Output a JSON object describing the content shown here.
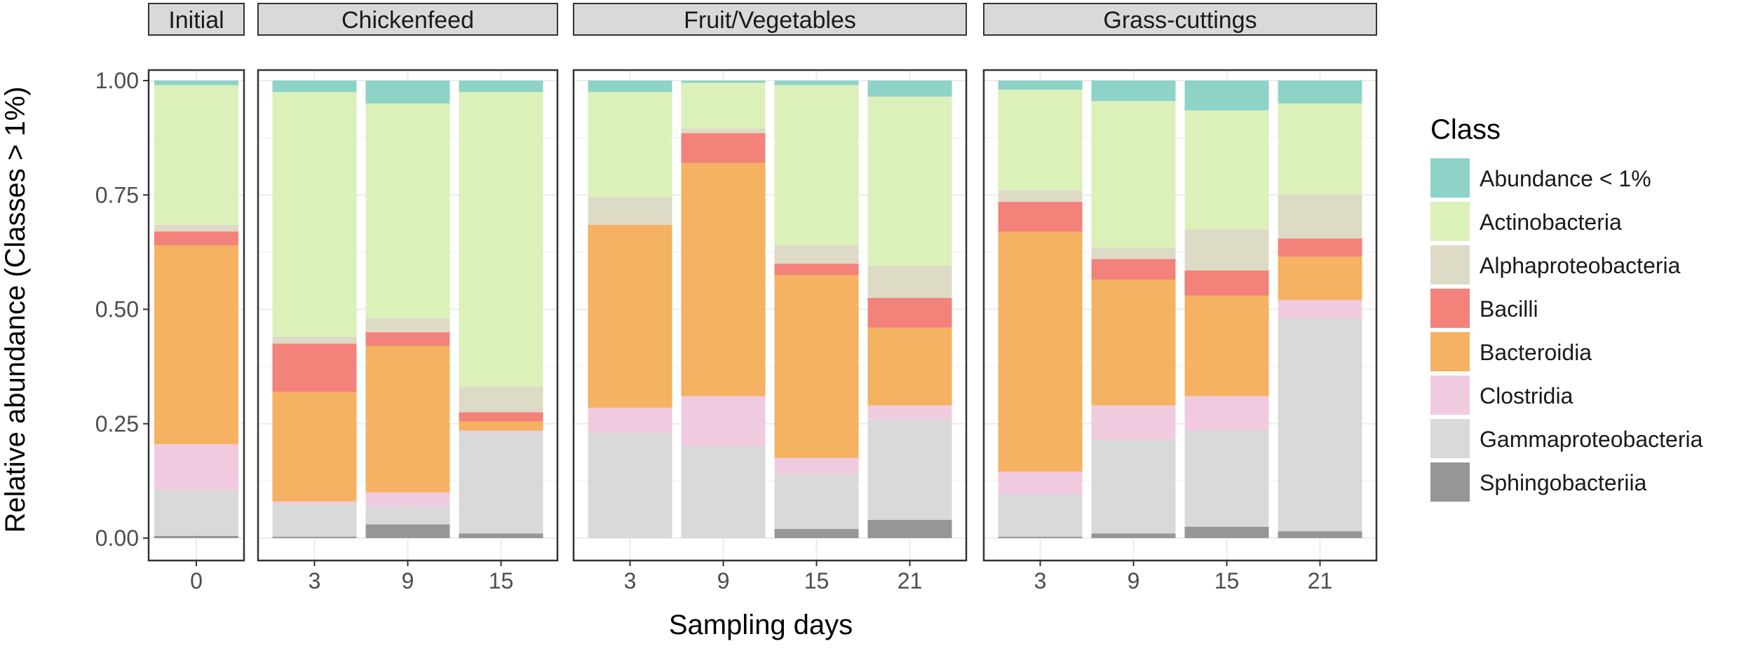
{
  "chart_data": {
    "type": "bar",
    "stacked": true,
    "xlabel": "Sampling days",
    "ylabel": "Relative abundance (Classes > 1%)",
    "ylim": [
      0,
      1
    ],
    "yticks": [
      "0.00",
      "0.25",
      "0.50",
      "0.75",
      "1.00"
    ],
    "ytick_values": [
      0,
      0.25,
      0.5,
      0.75,
      1.0
    ],
    "legend": {
      "title": "Class",
      "position": "right",
      "entries": [
        {
          "name": "Abundance < 1%",
          "color": "#8dd3c7"
        },
        {
          "name": "Actinobacteria",
          "color": "#dcf0b9"
        },
        {
          "name": "Alphaproteobacteria",
          "color": "#dddac6"
        },
        {
          "name": "Bacilli",
          "color": "#f2827a"
        },
        {
          "name": "Bacteroidia",
          "color": "#f4b262"
        },
        {
          "name": "Clostridia",
          "color": "#f0cbe0"
        },
        {
          "name": "Gammaproteobacteria",
          "color": "#d9d9d9"
        },
        {
          "name": "Sphingobacteriia",
          "color": "#969696"
        }
      ]
    },
    "stack_order_bottom_to_top": [
      "Sphingobacteriia",
      "Gammaproteobacteria",
      "Clostridia",
      "Bacteroidia",
      "Bacilli",
      "Alphaproteobacteria",
      "Actinobacteria",
      "Abundance < 1%"
    ],
    "facets": [
      {
        "title": "Initial",
        "bars": [
          {
            "day": "0",
            "values": {
              "Sphingobacteriia": 0.005,
              "Gammaproteobacteria": 0.1,
              "Clostridia": 0.1,
              "Bacteroidia": 0.435,
              "Bacilli": 0.03,
              "Alphaproteobacteria": 0.015,
              "Actinobacteria": 0.305,
              "Abundance < 1%": 0.01
            }
          }
        ]
      },
      {
        "title": "Chickenfeed",
        "bars": [
          {
            "day": "3",
            "values": {
              "Sphingobacteriia": 0.003,
              "Gammaproteobacteria": 0.072,
              "Clostridia": 0.005,
              "Bacteroidia": 0.24,
              "Bacilli": 0.105,
              "Alphaproteobacteria": 0.015,
              "Actinobacteria": 0.535,
              "Abundance < 1%": 0.025
            }
          },
          {
            "day": "9",
            "values": {
              "Sphingobacteriia": 0.03,
              "Gammaproteobacteria": 0.04,
              "Clostridia": 0.03,
              "Bacteroidia": 0.32,
              "Bacilli": 0.03,
              "Alphaproteobacteria": 0.03,
              "Actinobacteria": 0.47,
              "Abundance < 1%": 0.05
            }
          },
          {
            "day": "15",
            "values": {
              "Sphingobacteriia": 0.01,
              "Gammaproteobacteria": 0.22,
              "Clostridia": 0.005,
              "Bacteroidia": 0.02,
              "Bacilli": 0.02,
              "Alphaproteobacteria": 0.055,
              "Actinobacteria": 0.645,
              "Abundance < 1%": 0.025
            }
          }
        ]
      },
      {
        "title": "Fruit/Vegetables",
        "bars": [
          {
            "day": "3",
            "values": {
              "Sphingobacteriia": 0.0,
              "Gammaproteobacteria": 0.23,
              "Clostridia": 0.055,
              "Bacteroidia": 0.4,
              "Bacilli": 0.0,
              "Alphaproteobacteria": 0.06,
              "Actinobacteria": 0.23,
              "Abundance < 1%": 0.025
            }
          },
          {
            "day": "9",
            "values": {
              "Sphingobacteriia": 0.0,
              "Gammaproteobacteria": 0.2,
              "Clostridia": 0.11,
              "Bacteroidia": 0.51,
              "Bacilli": 0.065,
              "Alphaproteobacteria": 0.01,
              "Actinobacteria": 0.1,
              "Abundance < 1%": 0.005
            }
          },
          {
            "day": "15",
            "values": {
              "Sphingobacteriia": 0.02,
              "Gammaproteobacteria": 0.12,
              "Clostridia": 0.035,
              "Bacteroidia": 0.4,
              "Bacilli": 0.025,
              "Alphaproteobacteria": 0.04,
              "Actinobacteria": 0.35,
              "Abundance < 1%": 0.01
            }
          },
          {
            "day": "21",
            "values": {
              "Sphingobacteriia": 0.04,
              "Gammaproteobacteria": 0.22,
              "Clostridia": 0.03,
              "Bacteroidia": 0.17,
              "Bacilli": 0.065,
              "Alphaproteobacteria": 0.07,
              "Actinobacteria": 0.37,
              "Abundance < 1%": 0.035
            }
          }
        ]
      },
      {
        "title": "Grass-cuttings",
        "bars": [
          {
            "day": "3",
            "values": {
              "Sphingobacteriia": 0.003,
              "Gammaproteobacteria": 0.092,
              "Clostridia": 0.05,
              "Bacteroidia": 0.525,
              "Bacilli": 0.065,
              "Alphaproteobacteria": 0.025,
              "Actinobacteria": 0.22,
              "Abundance < 1%": 0.02
            }
          },
          {
            "day": "9",
            "values": {
              "Sphingobacteriia": 0.01,
              "Gammaproteobacteria": 0.205,
              "Clostridia": 0.075,
              "Bacteroidia": 0.275,
              "Bacilli": 0.045,
              "Alphaproteobacteria": 0.025,
              "Actinobacteria": 0.32,
              "Abundance < 1%": 0.045
            }
          },
          {
            "day": "15",
            "values": {
              "Sphingobacteriia": 0.025,
              "Gammaproteobacteria": 0.21,
              "Clostridia": 0.075,
              "Bacteroidia": 0.22,
              "Bacilli": 0.055,
              "Alphaproteobacteria": 0.09,
              "Actinobacteria": 0.26,
              "Abundance < 1%": 0.065
            }
          },
          {
            "day": "21",
            "values": {
              "Sphingobacteriia": 0.015,
              "Gammaproteobacteria": 0.465,
              "Clostridia": 0.04,
              "Bacteroidia": 0.095,
              "Bacilli": 0.04,
              "Alphaproteobacteria": 0.095,
              "Actinobacteria": 0.2,
              "Abundance < 1%": 0.05
            }
          }
        ]
      }
    ]
  }
}
